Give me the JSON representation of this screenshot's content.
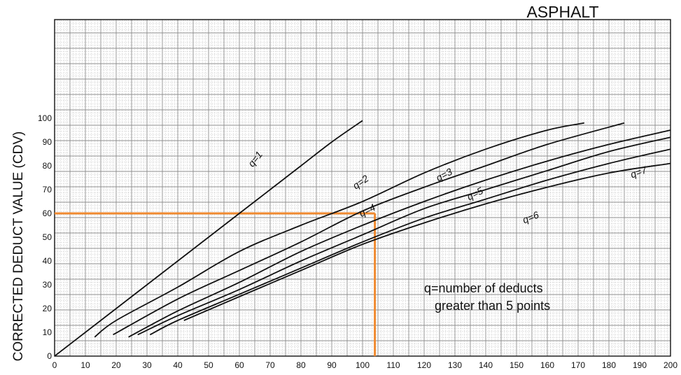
{
  "chart_data": {
    "type": "line",
    "title": "ASPHALT",
    "xlabel": "",
    "ylabel": "CORRECTED DEDUCT VALUE (CDV)",
    "xlim": [
      0,
      200
    ],
    "ylim": [
      0,
      100
    ],
    "x_ticks": [
      "0",
      "10",
      "20",
      "30",
      "40",
      "50",
      "60",
      "70",
      "80",
      "90",
      "100",
      "110",
      "120",
      "130",
      "140",
      "150",
      "160",
      "170",
      "180",
      "190",
      "200"
    ],
    "y_ticks": [
      "0",
      "10",
      "20",
      "30",
      "40",
      "50",
      "60",
      "70",
      "80",
      "90",
      "100"
    ],
    "grid": true,
    "series": [
      {
        "name": "q=1",
        "x": [
          0,
          10,
          20,
          30,
          40,
          50,
          60,
          70,
          80,
          90,
          100
        ],
        "y": [
          0,
          10,
          20,
          30,
          40,
          50,
          60,
          70,
          80,
          90,
          99
        ]
      },
      {
        "name": "q=2",
        "x": [
          13,
          20,
          40,
          60,
          80,
          100,
          120,
          140,
          160,
          172
        ],
        "y": [
          8,
          15,
          29,
          44,
          55,
          65,
          77,
          87,
          95,
          98
        ]
      },
      {
        "name": "q=3",
        "x": [
          19,
          40,
          60,
          80,
          100,
          120,
          140,
          160,
          185
        ],
        "y": [
          9,
          24,
          36,
          48,
          61,
          71,
          80,
          89,
          98
        ]
      },
      {
        "name": "q=4",
        "x": [
          24,
          40,
          60,
          80,
          100,
          120,
          140,
          160,
          180,
          200
        ],
        "y": [
          8,
          19,
          31,
          44,
          55,
          65,
          74,
          82,
          89,
          95
        ]
      },
      {
        "name": "q=5",
        "x": [
          27,
          40,
          60,
          80,
          100,
          120,
          140,
          160,
          180,
          200
        ],
        "y": [
          9,
          17,
          28,
          40,
          51,
          62,
          70,
          78,
          86,
          92
        ]
      },
      {
        "name": "q=6",
        "x": [
          31,
          40,
          60,
          80,
          100,
          120,
          140,
          160,
          180,
          200
        ],
        "y": [
          9,
          15,
          26,
          37,
          48,
          58,
          66,
          74,
          81,
          87
        ]
      },
      {
        "name": "q=7",
        "x": [
          42,
          60,
          80,
          100,
          120,
          140,
          160,
          180,
          200
        ],
        "y": [
          15,
          25,
          36,
          47,
          56,
          64,
          71,
          77,
          81
        ]
      }
    ],
    "curve_labels": [
      {
        "text": "q=1",
        "x": 66,
        "y": 82,
        "rotate": -52
      },
      {
        "text": "q=2",
        "x": 100,
        "y": 72,
        "rotate": -35
      },
      {
        "text": "q=3",
        "x": 127,
        "y": 75,
        "rotate": -28
      },
      {
        "text": "q=4",
        "x": 102,
        "y": 60,
        "rotate": -27
      },
      {
        "text": "q=5",
        "x": 137,
        "y": 67,
        "rotate": -27
      },
      {
        "text": "q=6",
        "x": 155,
        "y": 57,
        "rotate": -22
      },
      {
        "text": "q=7",
        "x": 190,
        "y": 76,
        "rotate": -20
      }
    ],
    "reference_lines": {
      "color": "#f08a30",
      "x": 104,
      "y": 60
    },
    "annotation": [
      "q=number  of  deducts",
      "greater  than  5 points"
    ],
    "colors": {
      "curve": "#111111",
      "grid": "#bdbdbd",
      "frame": "#111111"
    }
  }
}
